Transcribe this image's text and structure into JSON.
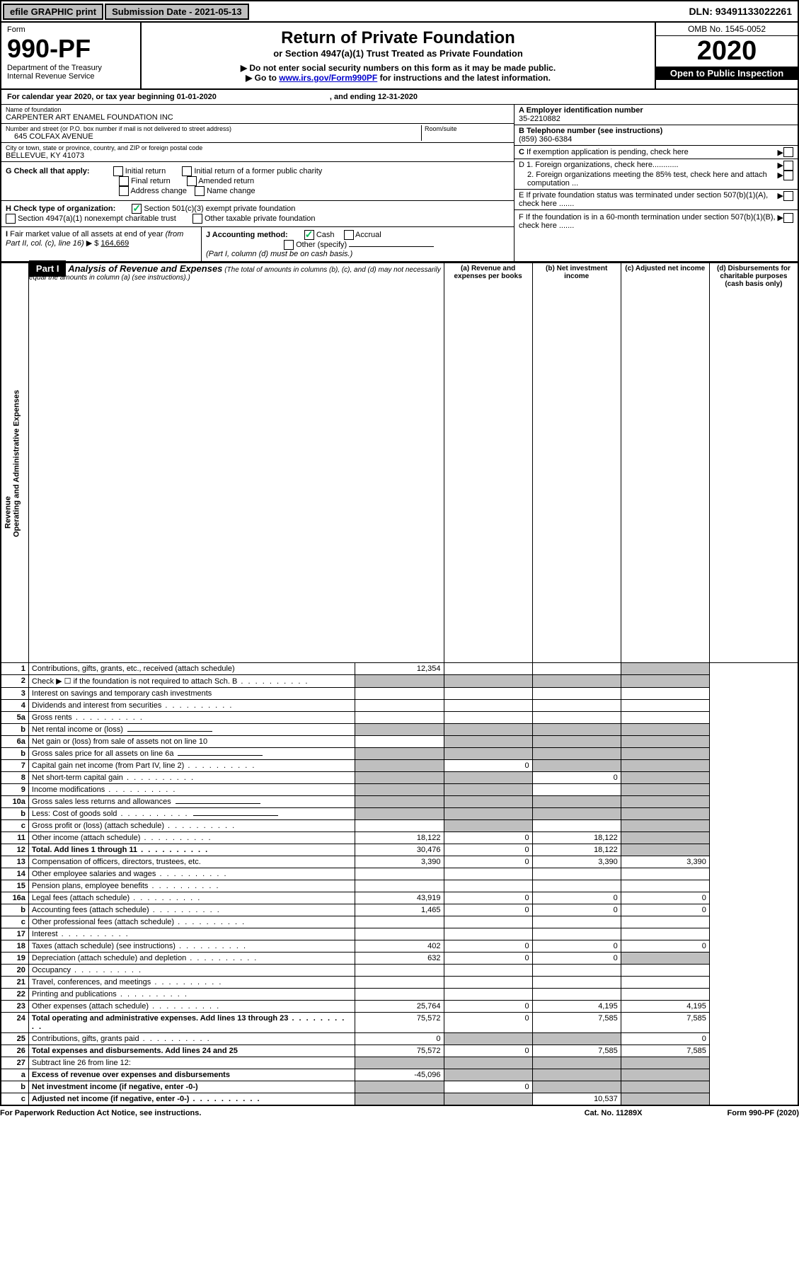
{
  "topbar": {
    "efile": "efile GRAPHIC print",
    "subdate_lbl": "Submission Date - 2021-05-13",
    "dln": "DLN: 93491133022261"
  },
  "header": {
    "form_lbl": "Form",
    "form_num": "990-PF",
    "dept": "Department of the Treasury",
    "irs": "Internal Revenue Service",
    "title": "Return of Private Foundation",
    "subtitle": "or Section 4947(a)(1) Trust Treated as Private Foundation",
    "note1": "▶ Do not enter social security numbers on this form as it may be made public.",
    "note2": "▶ Go to ",
    "link": "www.irs.gov/Form990PF",
    "note3": " for instructions and the latest information.",
    "omb": "OMB No. 1545-0052",
    "year": "2020",
    "open": "Open to Public Inspection"
  },
  "cal": {
    "text": "For calendar year 2020, or tax year beginning 01-01-2020",
    "end": ", and ending 12-31-2020"
  },
  "id": {
    "name_lbl": "Name of foundation",
    "name": "CARPENTER ART ENAMEL FOUNDATION INC",
    "addr_lbl": "Number and street (or P.O. box number if mail is not delivered to street address)",
    "room_lbl": "Room/suite",
    "addr": "645 COLFAX AVENUE",
    "city_lbl": "City or town, state or province, country, and ZIP or foreign postal code",
    "city": "BELLEVUE, KY  41073",
    "a_lbl": "A Employer identification number",
    "a_val": "35-2210882",
    "b_lbl": "B Telephone number (see instructions)",
    "b_val": "(859) 360-6384",
    "c_lbl": "C If exemption application is pending, check here",
    "d1": "D 1. Foreign organizations, check here............",
    "d2": "2. Foreign organizations meeting the 85% test, check here and attach computation ...",
    "e": "E  If private foundation status was terminated under section 507(b)(1)(A), check here .......",
    "f": "F  If the foundation is in a 60-month termination under section 507(b)(1)(B), check here ......."
  },
  "g": {
    "lbl": "G Check all that apply:",
    "opts": [
      "Initial return",
      "Initial return of a former public charity",
      "Final return",
      "Amended return",
      "Address change",
      "Name change"
    ]
  },
  "h": {
    "lbl": "H Check type of organization:",
    "o1": "Section 501(c)(3) exempt private foundation",
    "o2": "Section 4947(a)(1) nonexempt charitable trust",
    "o3": "Other taxable private foundation"
  },
  "i": {
    "lbl": "I Fair market value of all assets at end of year (from Part II, col. (c), line 16) ▶ $",
    "val": "164,669"
  },
  "j": {
    "lbl": "J Accounting method:",
    "o1": "Cash",
    "o2": "Accrual",
    "o3": "Other (specify)",
    "note": "(Part I, column (d) must be on cash basis.)"
  },
  "part1": {
    "lbl": "Part I",
    "title": "Analysis of Revenue and Expenses",
    "note": "(The total of amounts in columns (b), (c), and (d) may not necessarily equal the amounts in column (a) (see instructions).)"
  },
  "cols": {
    "a": "(a)   Revenue and expenses per books",
    "b": "(b)  Net investment income",
    "c": "(c)  Adjusted net income",
    "d": "(d)  Disbursements for charitable purposes (cash basis only)"
  },
  "sections": {
    "rev": "Revenue",
    "exp": "Operating and Administrative Expenses"
  },
  "rows": [
    {
      "n": "1",
      "d": "Contributions, gifts, grants, etc., received (attach schedule)",
      "a": "12,354",
      "grey": [
        "d"
      ]
    },
    {
      "n": "2",
      "d": "Check ▶ ☐ if the foundation is not required to attach Sch. B",
      "grey": [
        "a",
        "b",
        "c",
        "d"
      ],
      "dotted": true
    },
    {
      "n": "3",
      "d": "Interest on savings and temporary cash investments"
    },
    {
      "n": "4",
      "d": "Dividends and interest from securities",
      "dotted": true
    },
    {
      "n": "5a",
      "d": "Gross rents",
      "dotted": true
    },
    {
      "n": "b",
      "d": "Net rental income or (loss)",
      "grey": [
        "a",
        "b",
        "c",
        "d"
      ],
      "underline": true
    },
    {
      "n": "6a",
      "d": "Net gain or (loss) from sale of assets not on line 10",
      "grey": [
        "b",
        "c",
        "d"
      ]
    },
    {
      "n": "b",
      "d": "Gross sales price for all assets on line 6a",
      "grey": [
        "a",
        "b",
        "c",
        "d"
      ],
      "underline": true
    },
    {
      "n": "7",
      "d": "Capital gain net income (from Part IV, line 2)",
      "dotted": true,
      "grey": [
        "a",
        "c",
        "d"
      ],
      "b": "0"
    },
    {
      "n": "8",
      "d": "Net short-term capital gain",
      "dotted": true,
      "grey": [
        "a",
        "b",
        "d"
      ],
      "c": "0"
    },
    {
      "n": "9",
      "d": "Income modifications",
      "dotted": true,
      "grey": [
        "a",
        "b",
        "d"
      ]
    },
    {
      "n": "10a",
      "d": "Gross sales less returns and allowances",
      "grey": [
        "a",
        "b",
        "c",
        "d"
      ],
      "underline": true
    },
    {
      "n": "b",
      "d": "Less: Cost of goods sold",
      "dotted": true,
      "grey": [
        "a",
        "b",
        "c",
        "d"
      ],
      "underline": true
    },
    {
      "n": "c",
      "d": "Gross profit or (loss) (attach schedule)",
      "dotted": true,
      "grey": [
        "b",
        "d"
      ]
    },
    {
      "n": "11",
      "d": "Other income (attach schedule)",
      "dotted": true,
      "a": "18,122",
      "b": "0",
      "c": "18,122",
      "grey": [
        "d"
      ]
    },
    {
      "n": "12",
      "d": "Total. Add lines 1 through 11",
      "dotted": true,
      "bold": true,
      "a": "30,476",
      "b": "0",
      "c": "18,122",
      "grey": [
        "d"
      ]
    },
    {
      "n": "13",
      "d": "Compensation of officers, directors, trustees, etc.",
      "a": "3,390",
      "b": "0",
      "c": "3,390",
      "dd": "3,390"
    },
    {
      "n": "14",
      "d": "Other employee salaries and wages",
      "dotted": true
    },
    {
      "n": "15",
      "d": "Pension plans, employee benefits",
      "dotted": true
    },
    {
      "n": "16a",
      "d": "Legal fees (attach schedule)",
      "dotted": true,
      "a": "43,919",
      "b": "0",
      "c": "0",
      "dd": "0"
    },
    {
      "n": "b",
      "d": "Accounting fees (attach schedule)",
      "dotted": true,
      "a": "1,465",
      "b": "0",
      "c": "0",
      "dd": "0"
    },
    {
      "n": "c",
      "d": "Other professional fees (attach schedule)",
      "dotted": true
    },
    {
      "n": "17",
      "d": "Interest",
      "dotted": true
    },
    {
      "n": "18",
      "d": "Taxes (attach schedule) (see instructions)",
      "dotted": true,
      "a": "402",
      "b": "0",
      "c": "0",
      "dd": "0"
    },
    {
      "n": "19",
      "d": "Depreciation (attach schedule) and depletion",
      "dotted": true,
      "a": "632",
      "b": "0",
      "c": "0",
      "grey": [
        "d"
      ]
    },
    {
      "n": "20",
      "d": "Occupancy",
      "dotted": true
    },
    {
      "n": "21",
      "d": "Travel, conferences, and meetings",
      "dotted": true
    },
    {
      "n": "22",
      "d": "Printing and publications",
      "dotted": true
    },
    {
      "n": "23",
      "d": "Other expenses (attach schedule)",
      "dotted": true,
      "a": "25,764",
      "b": "0",
      "c": "4,195",
      "dd": "4,195"
    },
    {
      "n": "24",
      "d": "Total operating and administrative expenses. Add lines 13 through 23",
      "dotted": true,
      "bold": true,
      "a": "75,572",
      "b": "0",
      "c": "7,585",
      "dd": "7,585"
    },
    {
      "n": "25",
      "d": "Contributions, gifts, grants paid",
      "dotted": true,
      "a": "0",
      "grey": [
        "b",
        "c"
      ],
      "dd": "0"
    },
    {
      "n": "26",
      "d": "Total expenses and disbursements. Add lines 24 and 25",
      "bold": true,
      "a": "75,572",
      "b": "0",
      "c": "7,585",
      "dd": "7,585"
    },
    {
      "n": "27",
      "d": "Subtract line 26 from line 12:",
      "grey": [
        "a",
        "b",
        "c",
        "d"
      ]
    },
    {
      "n": "a",
      "d": "Excess of revenue over expenses and disbursements",
      "bold": true,
      "a": "-45,096",
      "grey": [
        "b",
        "c",
        "d"
      ]
    },
    {
      "n": "b",
      "d": "Net investment income (if negative, enter -0-)",
      "bold": true,
      "grey": [
        "a",
        "c",
        "d"
      ],
      "b": "0"
    },
    {
      "n": "c",
      "d": "Adjusted net income (if negative, enter -0-)",
      "bold": true,
      "dotted": true,
      "grey": [
        "a",
        "b",
        "d"
      ],
      "c": "10,537"
    }
  ],
  "footer": {
    "l": "For Paperwork Reduction Act Notice, see instructions.",
    "c": "Cat. No. 11289X",
    "r": "Form 990-PF (2020)"
  }
}
